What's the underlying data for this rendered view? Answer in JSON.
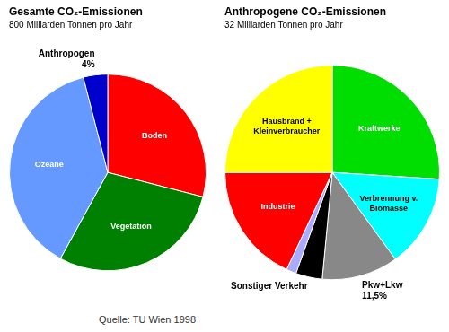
{
  "chart_data": [
    {
      "type": "pie",
      "title": "Gesamte CO₂-Emissionen",
      "subtitle": "800 Milliarden Tonnen pro Jahr",
      "categories": [
        "Boden",
        "Vegetation",
        "Ozeane",
        "Anthropogen"
      ],
      "values": [
        29,
        29,
        38,
        4
      ],
      "value_labels": [
        null,
        null,
        null,
        "4%"
      ],
      "colors": [
        "#ff0000",
        "#008000",
        "#6699ff",
        "#0000cc"
      ]
    },
    {
      "type": "pie",
      "title": "Anthropogene CO₂-Emissionen",
      "subtitle": "32 Milliarden Tonnen pro Jahr",
      "categories": [
        "Kraftwerke",
        "Verbrennung v.\nBiomasse",
        "Pkw+Lkw",
        "Sonstiger Verkehr",
        null,
        "Industrie",
        "Hausbrand +\nKleinverbraucher"
      ],
      "values": [
        26,
        14,
        11.5,
        4,
        1.5,
        18,
        25
      ],
      "value_labels": [
        null,
        null,
        "11,5%",
        null,
        null,
        null,
        null
      ],
      "colors": [
        "#00dd00",
        "#00ffff",
        "#888888",
        "#000000",
        "#aaaaff",
        "#ff0000",
        "#ffff00"
      ]
    }
  ],
  "annotations": [
    "Quelle: TU Wien 1998"
  ]
}
